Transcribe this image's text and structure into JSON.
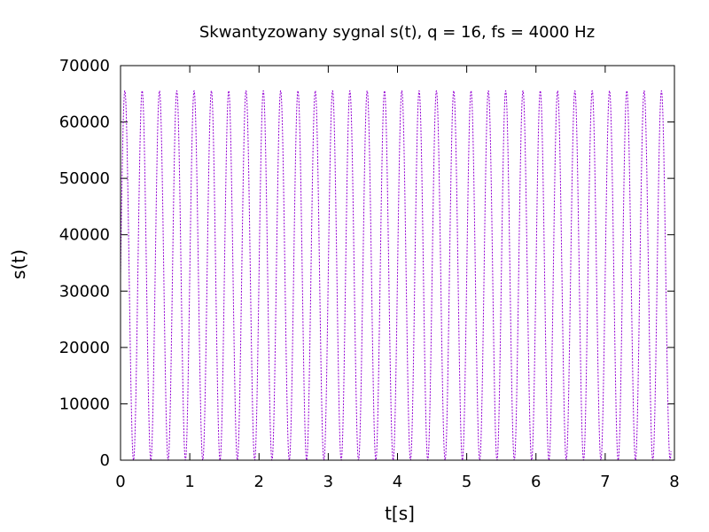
{
  "chart_data": {
    "type": "line",
    "title": "Skwantyzowany sygnal s(t), q = 16, fs = 4000 Hz",
    "xlabel": "t[s]",
    "ylabel": "s(t)",
    "xlim": [
      0,
      8
    ],
    "ylim": [
      0,
      70000
    ],
    "x_ticks": [
      0,
      1,
      2,
      3,
      4,
      5,
      6,
      7,
      8
    ],
    "y_ticks": [
      0,
      10000,
      20000,
      30000,
      40000,
      50000,
      60000,
      70000
    ],
    "grid": false,
    "legend": "none",
    "series": [
      {
        "color": "#9400d3",
        "waveform": "sine",
        "x_start": 0,
        "x_end": 7.95,
        "frequency_hz": 4.0,
        "min": 0,
        "max": 65535,
        "initial_value": 32768
      }
    ]
  }
}
